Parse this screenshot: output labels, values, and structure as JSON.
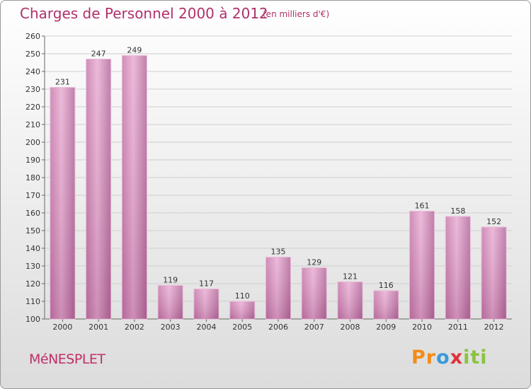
{
  "header": {
    "title": "Charges de Personnel 2000 à 2012",
    "subtitle": "(en milliers d'€)"
  },
  "footer": {
    "city": "MéNESPLET"
  },
  "logo": {
    "letters": [
      "P",
      "r",
      "o",
      "x",
      "i",
      "t",
      "i"
    ],
    "colors": [
      "#f28c1a",
      "#f28c1a",
      "#3a9ad9",
      "#e0303a",
      "#8ac43f",
      "#8ac43f",
      "#8ac43f"
    ]
  },
  "colors": {
    "bar_light": "#e6a8d0",
    "bar_dark": "#b26b9a",
    "grid": "#cfcfcf",
    "title": "#b0306a"
  },
  "chart_data": {
    "type": "bar",
    "categories": [
      "2000",
      "2001",
      "2002",
      "2003",
      "2004",
      "2005",
      "2006",
      "2007",
      "2008",
      "2009",
      "2010",
      "2011",
      "2012"
    ],
    "values": [
      231,
      247,
      249,
      119,
      117,
      110,
      135,
      129,
      121,
      116,
      161,
      158,
      152
    ],
    "title": "Charges de Personnel 2000 à 2012",
    "subtitle": "(en milliers d'€)",
    "ylim": [
      100,
      260
    ],
    "yticks": [
      100,
      110,
      120,
      130,
      140,
      150,
      160,
      170,
      180,
      190,
      200,
      210,
      220,
      230,
      240,
      250,
      260
    ],
    "grid": true
  }
}
